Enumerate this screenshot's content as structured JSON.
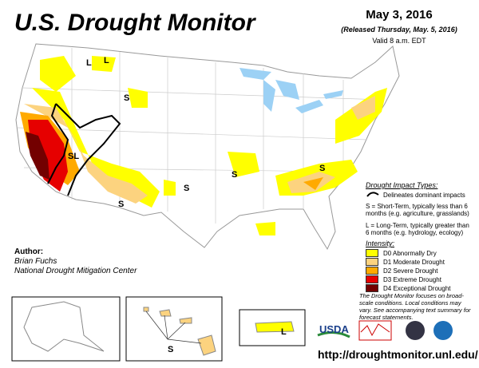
{
  "header": {
    "title": "U.S. Drought Monitor",
    "date": "May 3, 2016",
    "released": "(Released Thursday, May. 5, 2016)",
    "valid": "Valid 8 a.m. EDT"
  },
  "author": {
    "label": "Author:",
    "name": "Brian Fuchs",
    "org": "National Drought Mitigation Center"
  },
  "impacts": {
    "title": "Drought Impact Types:",
    "line": "Delineates dominant impacts",
    "short": "S = Short-Term, typically less than 6 months (e.g. agriculture, grasslands)",
    "long": "L = Long-Term, typically greater than 6 months (e.g. hydrology, ecology)"
  },
  "intensity": {
    "title": "Intensity:",
    "levels": [
      {
        "label": "D0 Abnormally Dry",
        "color": "#ffff00"
      },
      {
        "label": "D1 Moderate Drought",
        "color": "#fcd37f"
      },
      {
        "label": "D2 Severe Drought",
        "color": "#ffaa00"
      },
      {
        "label": "D3 Extreme Drought",
        "color": "#e60000"
      },
      {
        "label": "D4 Exceptional Drought",
        "color": "#730000"
      }
    ]
  },
  "note": "The Drought Monitor focuses on broad-scale conditions. Local conditions may vary. See accompanying text summary for forecast statements.",
  "map_labels": [
    "L",
    "L",
    "S",
    "SL",
    "S",
    "S",
    "S",
    "S",
    "S",
    "L"
  ],
  "logo": "USDA",
  "url": "http://droughtmonitor.unl.edu/"
}
